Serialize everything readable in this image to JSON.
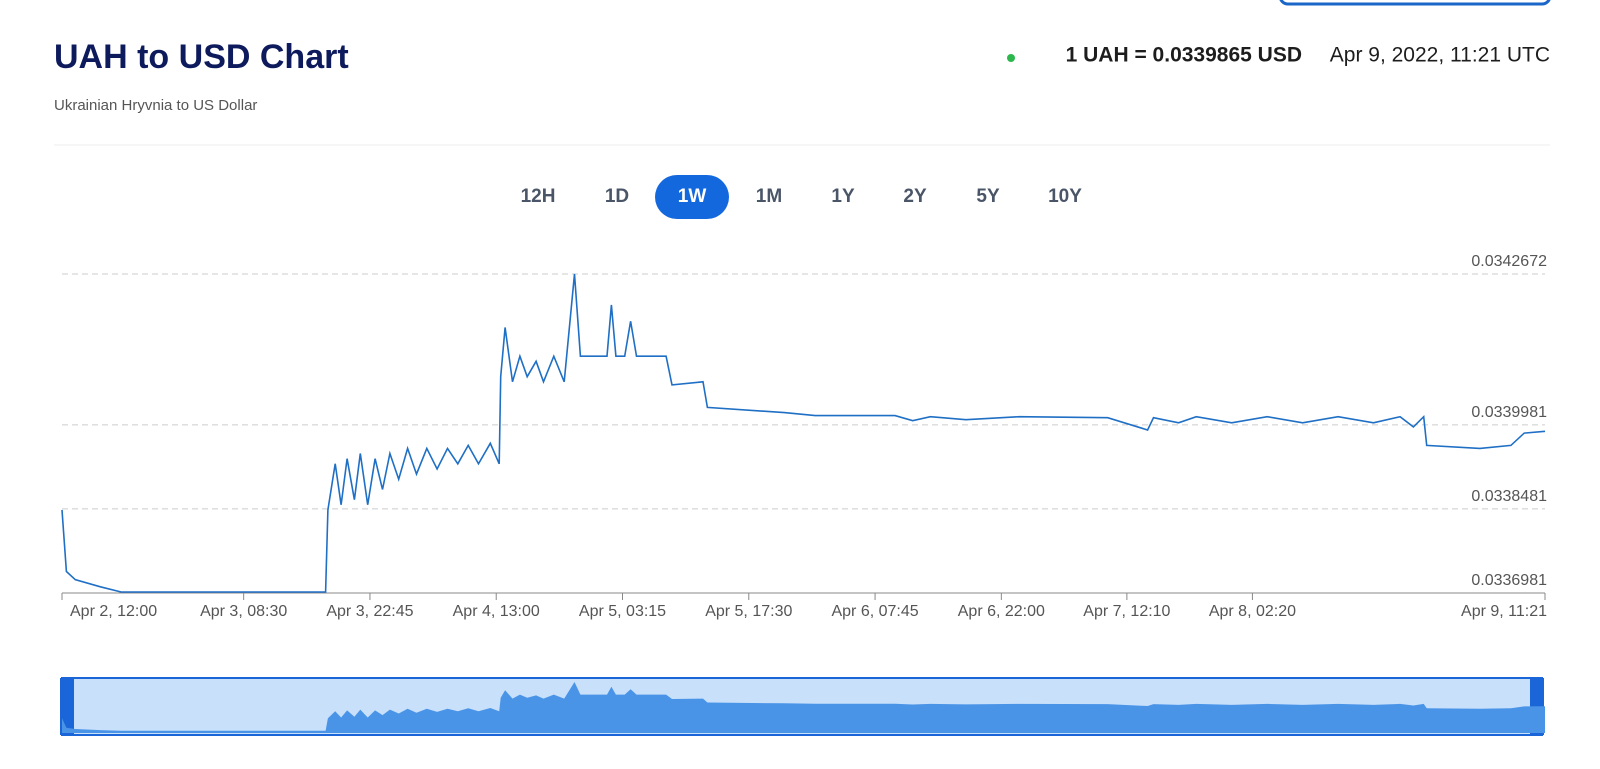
{
  "header": {
    "title": "UAH to USD Chart",
    "subtitle": "Ukrainian Hryvnia to US Dollar",
    "rate": "1 UAH = 0.0339865 USD",
    "timestamp": "Apr 9, 2022, 11:21 UTC"
  },
  "range_buttons": {
    "labels": [
      "12H",
      "1D",
      "1W",
      "1M",
      "1Y",
      "2Y",
      "5Y",
      "10Y"
    ],
    "selected": 2
  },
  "chart_data": {
    "type": "line",
    "color": "#1f6fc5",
    "grid": true,
    "x": [
      "Apr 2, 12:00",
      "Apr 2, 12:30",
      "Apr 2, 13:30",
      "Apr 2, 16:20",
      "Apr 2, 18:40",
      "Apr 3, 17:45",
      "Apr 3, 18:00",
      "Apr 3, 18:50",
      "Apr 3, 19:30",
      "Apr 3, 20:10",
      "Apr 3, 21:00",
      "Apr 3, 21:40",
      "Apr 3, 22:30",
      "Apr 3, 23:20",
      "Apr 4, 00:10",
      "Apr 4, 01:00",
      "Apr 4, 02:00",
      "Apr 4, 03:00",
      "Apr 4, 04:00",
      "Apr 4, 05:10",
      "Apr 4, 06:20",
      "Apr 4, 07:30",
      "Apr 4, 08:40",
      "Apr 4, 09:50",
      "Apr 4, 11:00",
      "Apr 4, 12:20",
      "Apr 4, 13:20",
      "Apr 4, 13:30",
      "Apr 4, 14:00",
      "Apr 4, 14:50",
      "Apr 4, 15:40",
      "Apr 4, 16:30",
      "Apr 4, 17:30",
      "Apr 4, 18:20",
      "Apr 4, 19:30",
      "Apr 4, 20:40",
      "Apr 4, 21:50",
      "Apr 4, 22:30",
      "Apr 5, 01:30",
      "Apr 5, 02:00",
      "Apr 5, 02:30",
      "Apr 5, 03:30",
      "Apr 5, 04:10",
      "Apr 5, 04:50",
      "Apr 5, 08:10",
      "Apr 5, 08:50",
      "Apr 5, 12:20",
      "Apr 5, 12:50",
      "Apr 5, 21:30",
      "Apr 6, 01:00",
      "Apr 6, 10:00",
      "Apr 6, 12:00",
      "Apr 6, 14:00",
      "Apr 6, 18:00",
      "Apr 7, 00:00",
      "Apr 7, 10:00",
      "Apr 7, 14:30",
      "Apr 7, 15:10",
      "Apr 7, 18:00",
      "Apr 7, 20:00",
      "Apr 8, 00:00",
      "Apr 8, 04:00",
      "Apr 8, 08:00",
      "Apr 8, 12:00",
      "Apr 8, 16:00",
      "Apr 8, 19:00",
      "Apr 8, 20:30",
      "Apr 8, 21:40",
      "Apr 8, 22:00",
      "Apr 9, 04:00",
      "Apr 9, 07:30",
      "Apr 9, 09:00",
      "Apr 9, 11:21"
    ],
    "values": [
      0.0338463,
      0.0337365,
      0.0337219,
      0.0337091,
      0.0336999,
      0.0336999,
      0.0338463,
      0.0339286,
      0.0338554,
      0.0339377,
      0.0338645,
      0.0339469,
      0.0338554,
      0.0339377,
      0.0338828,
      0.0339469,
      0.0339011,
      0.033956,
      0.0339103,
      0.033956,
      0.0339194,
      0.033956,
      0.0339286,
      0.0339615,
      0.0339286,
      0.0339652,
      0.0339286,
      0.034084,
      0.0341718,
      0.0340749,
      0.0341206,
      0.034084,
      0.0341114,
      0.0340749,
      0.0341206,
      0.0340749,
      0.0342672,
      0.0341206,
      0.0341206,
      0.034212,
      0.0341206,
      0.0341206,
      0.0341828,
      0.0341206,
      0.0341206,
      0.0340694,
      0.0340749,
      0.0340292,
      0.03402,
      0.0340145,
      0.0340145,
      0.0340054,
      0.0340127,
      0.0340072,
      0.0340127,
      0.0340109,
      0.0339889,
      0.0340109,
      0.0340017,
      0.0340127,
      0.0340017,
      0.0340127,
      0.0340017,
      0.0340127,
      0.0340017,
      0.0340127,
      0.0339944,
      0.0340127,
      0.0339615,
      0.033956,
      0.0339615,
      0.0339834,
      0.0339865
    ],
    "xlim": [
      "Apr 2, 12:00",
      "Apr 9, 11:21"
    ],
    "xticks": [
      "Apr 2, 12:00",
      "Apr 3, 08:30",
      "Apr 3, 22:45",
      "Apr 4, 13:00",
      "Apr 5, 03:15",
      "Apr 5, 17:30",
      "Apr 6, 07:45",
      "Apr 6, 22:00",
      "Apr 7, 12:10",
      "Apr 8, 02:20",
      "Apr 9, 11:21"
    ],
    "ylim": [
      0.0336981,
      0.0342672
    ],
    "yticks": [
      0.0336981,
      0.0338481,
      0.0339981,
      0.0342672
    ]
  }
}
